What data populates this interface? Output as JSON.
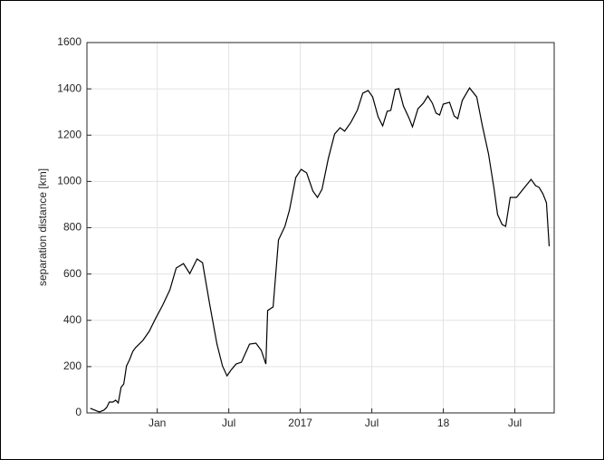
{
  "chart_data": {
    "type": "line",
    "y_label": "separation distance [km]",
    "x": [
      -5.62,
      -5.24,
      -4.86,
      -4.48,
      -4.25,
      -4.02,
      -3.72,
      -3.49,
      -3.27,
      -3.04,
      -2.81,
      -2.58,
      -2.35,
      -2.05,
      -1.82,
      -1.52,
      -1.21,
      -0.68,
      -0.15,
      0.46,
      1.06,
      1.59,
      2.2,
      2.73,
      3.34,
      3.8,
      4.4,
      5.01,
      5.47,
      5.85,
      6.23,
      6.61,
      7.06,
      7.74,
      8.28,
      8.73,
      9.11,
      9.26,
      9.72,
      10.17,
      10.71,
      11.09,
      11.62,
      12.07,
      12.53,
      13.06,
      13.44,
      13.82,
      14.35,
      14.88,
      15.34,
      15.72,
      16.25,
      16.78,
      17.24,
      17.69,
      18.07,
      18.53,
      18.91,
      19.29,
      19.59,
      19.97,
      20.27,
      20.65,
      21.11,
      21.41,
      21.87,
      22.32,
      22.7,
      23.08,
      23.39,
      23.69,
      23.99,
      24.52,
      24.91,
      25.21,
      25.59,
      26.2,
      26.8,
      27.26,
      27.79,
      28.25,
      28.55,
      28.93,
      29.23,
      29.61,
      30.14,
      30.75,
      31.36,
      31.74,
      32.04,
      32.35,
      32.65,
      32.88
    ],
    "values": [
      20,
      12,
      4,
      12,
      23,
      47,
      47,
      55,
      43,
      110,
      125,
      203,
      227,
      266,
      282,
      297,
      313,
      352,
      407,
      466,
      532,
      626,
      645,
      602,
      665,
      649,
      469,
      297,
      203,
      160,
      188,
      211,
      219,
      297,
      301,
      270,
      211,
      442,
      458,
      747,
      806,
      876,
      1017,
      1052,
      1037,
      958,
      931,
      966,
      1099,
      1205,
      1232,
      1217,
      1256,
      1307,
      1381,
      1393,
      1365,
      1279,
      1240,
      1303,
      1307,
      1397,
      1401,
      1326,
      1275,
      1236,
      1314,
      1338,
      1369,
      1338,
      1295,
      1287,
      1334,
      1342,
      1283,
      1271,
      1350,
      1404,
      1365,
      1244,
      1119,
      970,
      857,
      814,
      806,
      931,
      931,
      970,
      1009,
      982,
      974,
      947,
      908,
      720
    ],
    "color": "#000000",
    "xlim": [
      -5.9,
      33.3
    ],
    "xticks": [
      {
        "value": 0,
        "label": "Jan"
      },
      {
        "value": 6,
        "label": "Jul"
      },
      {
        "value": 12,
        "label": "2017"
      },
      {
        "value": 18,
        "label": "Jul"
      },
      {
        "value": 24,
        "label": "18"
      },
      {
        "value": 30,
        "label": "Jul"
      }
    ],
    "ylim": [
      0,
      1600
    ],
    "yticks": [
      0,
      200,
      400,
      600,
      800,
      1000,
      1200,
      1400,
      1600
    ],
    "grid": true
  }
}
